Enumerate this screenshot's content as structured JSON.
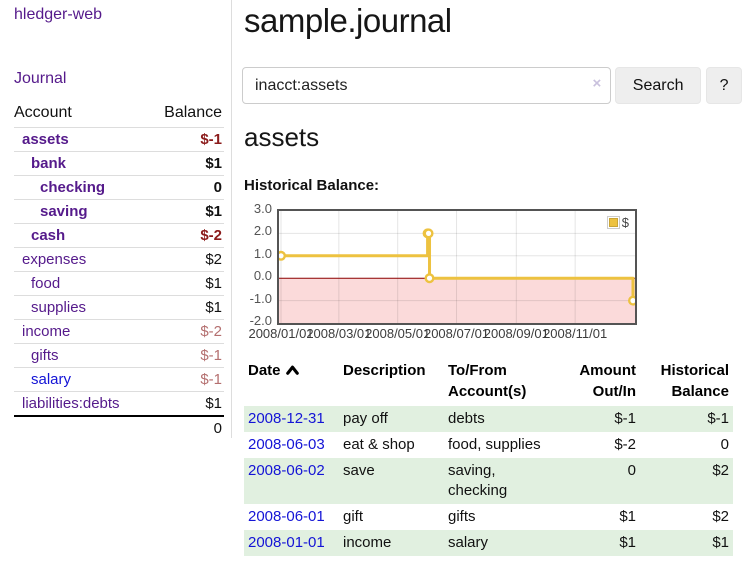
{
  "colors": {
    "link_purple": "#551A8B",
    "link_blue": "#1414D6",
    "negative_strong": "#8B1B1B",
    "negative_soft": "#B46F6F",
    "negative_table": "#942222",
    "row_stripe_green": "#E1F0E0",
    "chart_line_gold": "#EDC240",
    "chart_negative_pink": "#FBDADA",
    "zero_line_red": "#8B0000",
    "chart_border_gray": "#545454",
    "button_bg": "#EEEEEE"
  },
  "sidebar": {
    "app_title": "hledger-web",
    "nav_journal": "Journal",
    "accounts_header": {
      "account": "Account",
      "balance": "Balance"
    },
    "accounts": [
      {
        "name": "assets",
        "indent": 0,
        "bold": true,
        "balance": "$-1",
        "negative": true
      },
      {
        "name": "bank",
        "indent": 1,
        "bold": true,
        "balance": "$1",
        "negative": false
      },
      {
        "name": "checking",
        "indent": 2,
        "bold": true,
        "balance": "0",
        "negative": false
      },
      {
        "name": "saving",
        "indent": 2,
        "bold": true,
        "balance": "$1",
        "negative": false
      },
      {
        "name": "cash",
        "indent": 1,
        "bold": true,
        "balance": "$-2",
        "negative": true
      },
      {
        "name": "expenses",
        "indent": 0,
        "bold": false,
        "balance": "$2",
        "negative": false
      },
      {
        "name": "food",
        "indent": 1,
        "bold": false,
        "balance": "$1",
        "negative": false
      },
      {
        "name": "supplies",
        "indent": 1,
        "bold": false,
        "balance": "$1",
        "negative": false
      },
      {
        "name": "income",
        "indent": 0,
        "bold": false,
        "balance": "$-2",
        "negative": true
      },
      {
        "name": "gifts",
        "indent": 1,
        "bold": false,
        "balance": "$-1",
        "negative": true
      },
      {
        "name": "salary",
        "indent": 1,
        "bold": false,
        "balance": "$-1",
        "negative": true,
        "link_color": "blue"
      },
      {
        "name": "liabilities:debts",
        "indent": 0,
        "bold": false,
        "balance": "$1",
        "negative": false
      }
    ],
    "total": "0"
  },
  "search": {
    "value": "inacct:assets",
    "clear_icon": "×",
    "button_label": "Search",
    "help_label": "?"
  },
  "main": {
    "title": "sample.journal",
    "account_heading": "assets",
    "chart_label": "Historical Balance:"
  },
  "chart_data": {
    "type": "line",
    "step": true,
    "series": [
      {
        "name": "$",
        "color": "#EDC240",
        "points": [
          [
            "2008-01-01",
            1
          ],
          [
            "2008-06-01",
            2
          ],
          [
            "2008-06-02",
            2
          ],
          [
            "2008-06-03",
            0
          ],
          [
            "2008-12-31",
            -1
          ]
        ]
      }
    ],
    "ylim": [
      -2,
      3
    ],
    "yticks": [
      3.0,
      2.0,
      1.0,
      0.0,
      -1.0,
      -2.0
    ],
    "xticks": [
      "2008/01/01",
      "2008/03/01",
      "2008/05/01",
      "2008/07/01",
      "2008/09/01",
      "2008/11/01"
    ],
    "legend": {
      "label": "$",
      "position": "top-right"
    },
    "grid": true,
    "negative_region_color": "#FBDADA",
    "zero_line_color": "#8B0000"
  },
  "register": {
    "headers": [
      "Date",
      "Description",
      "To/From Account(s)",
      "Amount Out/In",
      "Historical Balance"
    ],
    "sort_column": "Date",
    "sort_direction": "ascending",
    "rows": [
      {
        "date": "2008-12-31",
        "description": "pay off",
        "accounts": "debts",
        "amount": "$-1",
        "amount_negative": true,
        "balance": "$-1",
        "balance_negative": true
      },
      {
        "date": "2008-06-03",
        "description": "eat & shop",
        "accounts": "food, supplies",
        "amount": "$-2",
        "amount_negative": true,
        "balance": "0",
        "balance_negative": false
      },
      {
        "date": "2008-06-02",
        "description": "save",
        "accounts": "saving, checking",
        "amount": "0",
        "amount_negative": false,
        "balance": "$2",
        "balance_negative": false
      },
      {
        "date": "2008-06-01",
        "description": "gift",
        "accounts": "gifts",
        "amount": "$1",
        "amount_negative": false,
        "balance": "$2",
        "balance_negative": false
      },
      {
        "date": "2008-01-01",
        "description": "income",
        "accounts": "salary",
        "amount": "$1",
        "amount_negative": false,
        "balance": "$1",
        "balance_negative": false
      }
    ]
  }
}
